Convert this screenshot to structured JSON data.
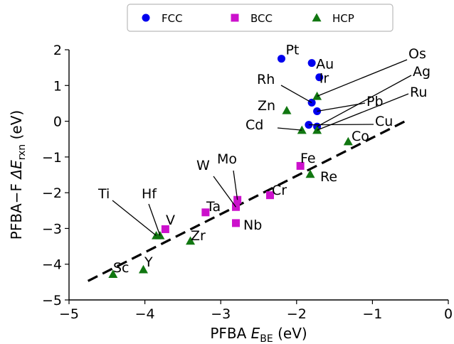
{
  "chart_data": {
    "type": "scatter",
    "title": "",
    "xlabel": {
      "prefix": "PFBA ",
      "symbol": "E",
      "sub": "BE",
      "suffix": " (eV)"
    },
    "ylabel": {
      "prefix": "PFBA−F ",
      "symbol": "ΔE",
      "sub": "rxn",
      "suffix": " (eV)"
    },
    "xlim": [
      -5,
      0
    ],
    "ylim": [
      -5,
      2
    ],
    "xticks": [
      {
        "v": -5,
        "label": "−5"
      },
      {
        "v": -4,
        "label": "−4"
      },
      {
        "v": -3,
        "label": "−3"
      },
      {
        "v": -2,
        "label": "−2"
      },
      {
        "v": -1,
        "label": "−1"
      },
      {
        "v": 0,
        "label": "0"
      }
    ],
    "yticks": [
      {
        "v": -5,
        "label": "−5"
      },
      {
        "v": -4,
        "label": "−4"
      },
      {
        "v": -3,
        "label": "−3"
      },
      {
        "v": -2,
        "label": "−2"
      },
      {
        "v": -1,
        "label": "−1"
      },
      {
        "v": 0,
        "label": "0"
      },
      {
        "v": 1,
        "label": "1"
      },
      {
        "v": 2,
        "label": "2"
      }
    ],
    "grid": false,
    "legend_position": "top-center",
    "series": [
      {
        "name": "FCC",
        "marker": "circle",
        "color": "#0000ee",
        "points": [
          {
            "label": "Pt",
            "x": -2.2,
            "y": 1.75
          },
          {
            "label": "Au",
            "x": -1.8,
            "y": 1.63
          },
          {
            "label": "Ir",
            "x": -1.7,
            "y": 1.23
          },
          {
            "label": "Rh",
            "x": -1.8,
            "y": 0.52
          },
          {
            "label": "Pb",
            "x": -1.73,
            "y": 0.28
          },
          {
            "label": "Cu",
            "x": -1.84,
            "y": -0.1
          },
          {
            "label": "Ag",
            "x": -1.73,
            "y": -0.15
          }
        ]
      },
      {
        "name": "BCC",
        "marker": "square",
        "color": "#cc11cc",
        "points": [
          {
            "label": "Fe",
            "x": -1.95,
            "y": -1.25
          },
          {
            "label": "Cr",
            "x": -2.35,
            "y": -2.07
          },
          {
            "label": "Mo",
            "x": -2.78,
            "y": -2.2
          },
          {
            "label": "W",
            "x": -2.8,
            "y": -2.4
          },
          {
            "label": "Ta",
            "x": -3.2,
            "y": -2.55
          },
          {
            "label": "Nb",
            "x": -2.8,
            "y": -2.85
          },
          {
            "label": "V",
            "x": -3.73,
            "y": -3.02
          }
        ]
      },
      {
        "name": "HCP",
        "marker": "triangle",
        "color": "#117711",
        "points": [
          {
            "label": "Os",
            "x": -1.73,
            "y": 0.7
          },
          {
            "label": "Zn",
            "x": -2.13,
            "y": 0.3
          },
          {
            "label": "Cd",
            "x": -1.93,
            "y": -0.25
          },
          {
            "label": "Ru",
            "x": -1.73,
            "y": -0.25
          },
          {
            "label": "Co",
            "x": -1.32,
            "y": -0.57
          },
          {
            "label": "Re",
            "x": -1.82,
            "y": -1.48
          },
          {
            "label": "Zr",
            "x": -3.4,
            "y": -3.35
          },
          {
            "label": "Ti",
            "x": -3.85,
            "y": -3.2
          },
          {
            "label": "Hf",
            "x": -3.8,
            "y": -3.2
          },
          {
            "label": "Y",
            "x": -4.02,
            "y": -4.15
          },
          {
            "label": "Sc",
            "x": -4.42,
            "y": -4.28
          }
        ]
      }
    ],
    "fit_line": {
      "style": "dashed",
      "color": "#000000",
      "x": [
        -4.75,
        -0.55
      ],
      "y": [
        -4.47,
        0.02
      ]
    }
  }
}
